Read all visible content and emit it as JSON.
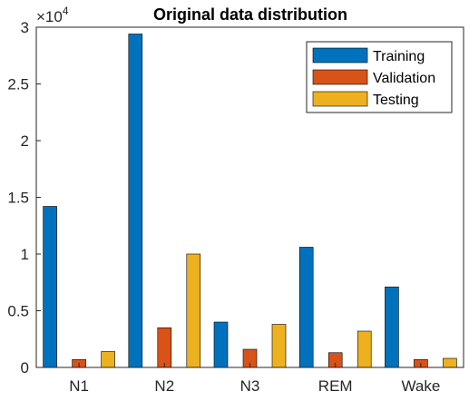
{
  "chart_data": {
    "type": "bar",
    "title": "Original data distribution",
    "xlabel": "",
    "ylabel": "",
    "categories": [
      "N1",
      "N2",
      "N3",
      "REM",
      "Wake"
    ],
    "series": [
      {
        "name": "Training",
        "color": "#0072BD",
        "values": [
          14200,
          29400,
          4000,
          10600,
          7100
        ]
      },
      {
        "name": "Validation",
        "color": "#D95319",
        "values": [
          700,
          3500,
          1600,
          1300,
          700
        ]
      },
      {
        "name": "Testing",
        "color": "#EDB120",
        "values": [
          1400,
          10000,
          3800,
          3200,
          800
        ]
      }
    ],
    "ylim": [
      0,
      30000
    ],
    "yticks": [
      0,
      5000,
      10000,
      15000,
      20000,
      25000,
      30000
    ],
    "ytick_labels": [
      "0",
      "0.5",
      "1",
      "1.5",
      "2",
      "2.5",
      "3"
    ],
    "y_multiplier_base": "×10",
    "y_multiplier_exponent": "4",
    "legend_position": "top-right",
    "grid": false
  }
}
